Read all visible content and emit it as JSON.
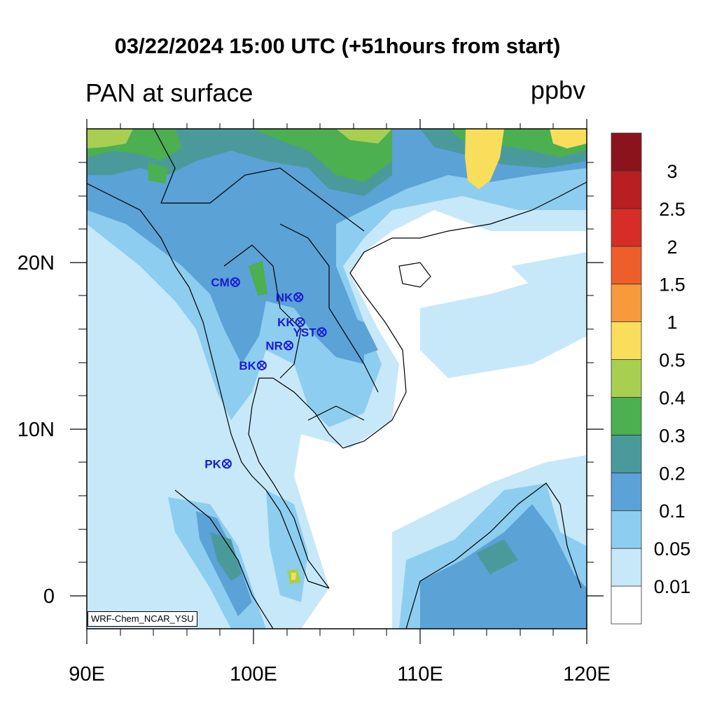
{
  "title": "03/22/2024 15:00 UTC (+51hours from start)",
  "left_title": "PAN at surface",
  "units": "ppbv",
  "credit": "WRF-Chem_NCAR_YSU",
  "axes": {
    "x_ticks": [
      "90E",
      "100E",
      "110E",
      "120E"
    ],
    "y_ticks": [
      "20N",
      "10N",
      "0"
    ],
    "lon_range": [
      90,
      120
    ],
    "lat_range": [
      -2,
      28
    ]
  },
  "stations": [
    {
      "code": "CM",
      "lon": 98.9,
      "lat": 18.8
    },
    {
      "code": "NK",
      "lon": 102.7,
      "lat": 17.9
    },
    {
      "code": "KK",
      "lon": 102.8,
      "lat": 16.4
    },
    {
      "code": "YST",
      "lon": 104.1,
      "lat": 15.8
    },
    {
      "code": "NR",
      "lon": 102.1,
      "lat": 15.0
    },
    {
      "code": "BK",
      "lon": 100.5,
      "lat": 13.8
    },
    {
      "code": "PK",
      "lon": 98.4,
      "lat": 7.9
    }
  ],
  "colorbar": {
    "levels": [
      "0.01",
      "0.05",
      "0.1",
      "0.2",
      "0.3",
      "0.4",
      "0.5",
      "1",
      "1.5",
      "2",
      "2.5",
      "3"
    ],
    "colors": [
      "#ffffff",
      "#c7e8f8",
      "#8dcdf0",
      "#5ba2d6",
      "#4a9a9c",
      "#4caf50",
      "#a8cf52",
      "#f8de5a",
      "#f69a3c",
      "#ee5e2b",
      "#d62e26",
      "#b81e22",
      "#8b141c"
    ]
  },
  "station_color": "#1a1ad6"
}
